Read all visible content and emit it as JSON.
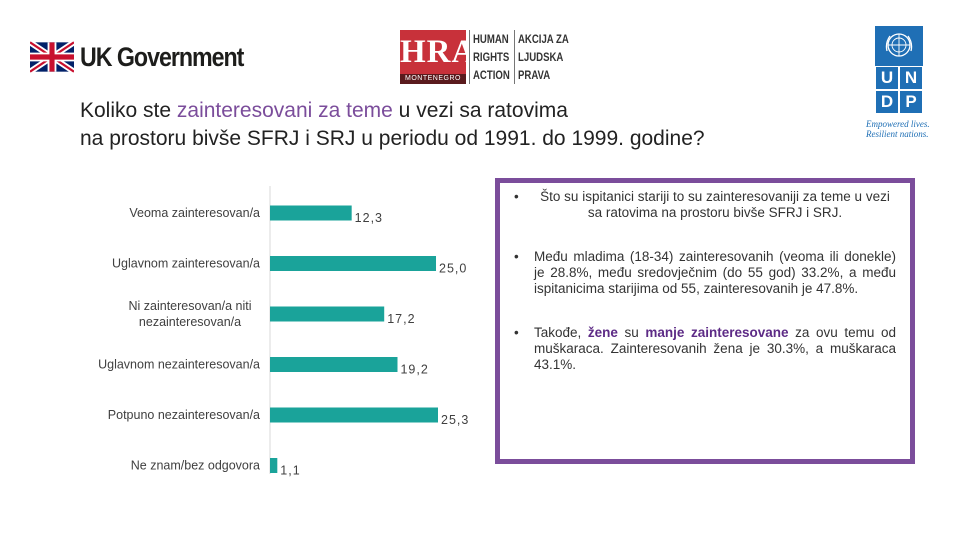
{
  "logos": {
    "uk": {
      "text": "UK Government",
      "icon": "union-flag-icon"
    },
    "hra": {
      "letters": "HRA",
      "sub": "MONTENEGRO",
      "en_lines": [
        "HUMAN",
        "RIGHTS",
        "ACTION"
      ],
      "me_lines": [
        "AKCIJA ZA",
        "LJUDSKA",
        "PRAVA"
      ]
    },
    "undp": {
      "icon": "un-globe-icon",
      "letters": [
        "U",
        "N",
        "D",
        "P"
      ],
      "tagline": [
        "Empowered lives.",
        "Resilient nations."
      ]
    }
  },
  "title": {
    "line1_a": "Koliko ste ",
    "line1_hl": "zainteresovani za teme",
    "line1_b": " u vezi sa ratovima",
    "line2": "na prostoru bivše SFRJ i SRJ u periodu od 1991. do 1999. godine?"
  },
  "chart_data": {
    "type": "bar",
    "orientation": "horizontal",
    "categories": [
      "Veoma zainteresovan/a",
      "Uglavnom zainteresovan/a",
      "Ni zainteresovan/a niti nezainteresovan/a",
      "Uglavnom nezainteresovan/a",
      "Potpuno nezainteresovan/a",
      "Ne znam/bez odgovora"
    ],
    "category_lines": [
      [
        "Veoma zainteresovan/a"
      ],
      [
        "Uglavnom zainteresovan/a"
      ],
      [
        "Ni zainteresovan/a niti",
        "nezainteresovan/a"
      ],
      [
        "Uglavnom nezainteresovan/a"
      ],
      [
        "Potpuno nezainteresovan/a"
      ],
      [
        "Ne znam/bez odgovora"
      ]
    ],
    "values": [
      12.3,
      25.0,
      17.2,
      19.2,
      25.3,
      1.1
    ],
    "value_labels": [
      "12,3",
      "25,0",
      "17,2",
      "19,2",
      "25,3",
      "1,1"
    ],
    "xlim": [
      0,
      25.3
    ],
    "color": "#1aa39a",
    "grid": false
  },
  "notes": {
    "n1": "Što su ispitanici stariji to su zainteresovaniji za teme u vezi sa ratovima na prostoru bivše SFRJ i SRJ.",
    "n2": "Među mladima (18-34) zainteresovanih (veoma ili donekle) je 28.8%, među sredovječnim (do 55 god) 33.2%, a među ispitanicima starijima od 55, zainteresovanih je 47.8%.",
    "n3_a": "Takođe, ",
    "n3_b": "žene",
    "n3_c": " su ",
    "n3_d": "manje zainteresovane",
    "n3_e": " za ovu temu od muškaraca. Zainteresovanih žena je 30.3%, a muškaraca 43.1%.",
    "bullet": "•"
  },
  "colors": {
    "accent": "#7b4d9b",
    "bar": "#1aa39a",
    "hra_red": "#c8313a",
    "undp_blue": "#1f6fb5"
  }
}
